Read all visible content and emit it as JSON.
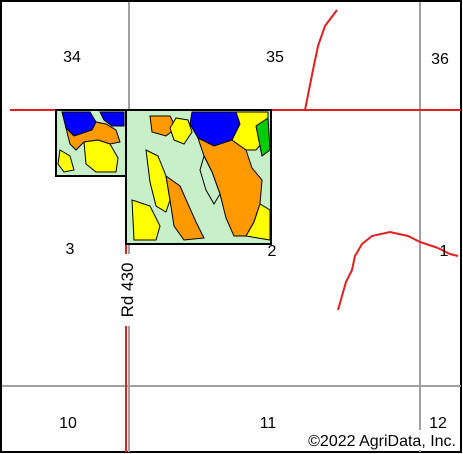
{
  "map": {
    "section_labels": {
      "s34": "34",
      "s35": "35",
      "s36": "36",
      "s3": "3",
      "s2": "2",
      "s1": "1",
      "s10": "10",
      "s11": "11",
      "s12": "12"
    },
    "road_label": "Rd 430",
    "copyright": "©2022 AgriData, Inc.",
    "colors": {
      "section_line": "#a0a0a0",
      "road": "#e02020",
      "field_outline": "#000000",
      "soil_light_green": "#c8f0c8",
      "soil_yellow": "#ffff00",
      "soil_orange": "#ff9900",
      "soil_blue": "#0000ff",
      "soil_green": "#00cc00",
      "frame": "#000000"
    }
  }
}
